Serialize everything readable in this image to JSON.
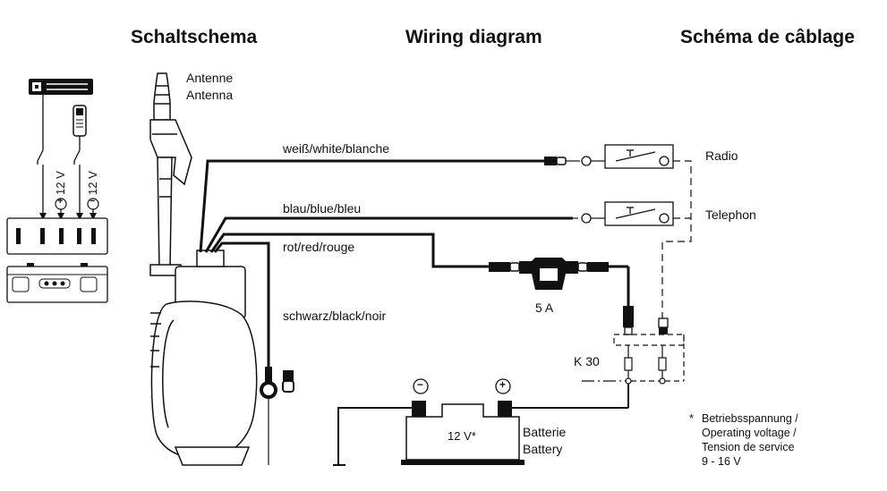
{
  "titles": {
    "de": "Schaltschema",
    "en": "Wiring diagram",
    "fr": "Schéma de câblage"
  },
  "antenna": {
    "de": "Antenne",
    "en": "Antenna"
  },
  "wires": {
    "white": "weiß/white/blanche",
    "blue": "blau/blue/bleu",
    "red": "rot/red/rouge",
    "black": "schwarz/black/noir"
  },
  "components": {
    "radio": "Radio",
    "telephon": "Telephon",
    "fuse": "5 A",
    "terminal": "K 30",
    "battery_voltage": "12 V*",
    "battery_de": "Batterie",
    "battery_en": "Battery",
    "minus": "−",
    "plus": "+"
  },
  "connector_labels": {
    "v1": "12 V",
    "v2": "12 V",
    "plus": "+",
    "minus": "−"
  },
  "footnote": {
    "star": "*",
    "line1": "Betriebsspannung /",
    "line2": "Operating voltage /",
    "line3": "Tension de service",
    "line4": "9 - 16 V"
  }
}
